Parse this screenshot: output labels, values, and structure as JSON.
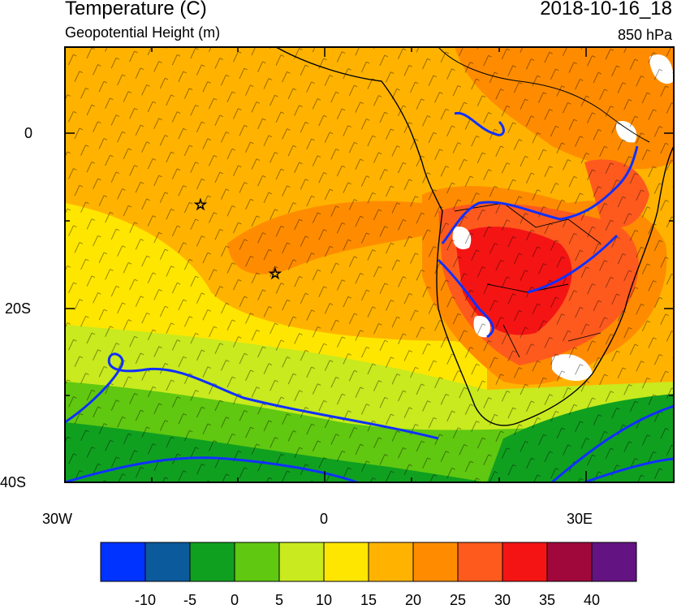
{
  "header": {
    "title": "Temperature (C)",
    "subtitle": "Geopotential Height (m)",
    "datetime": "2018-10-16_18",
    "level": "850 hPa"
  },
  "axes": {
    "lat_labels": [
      "0",
      "20S",
      "40S"
    ],
    "lon_labels": [
      "30W",
      "0",
      "30E"
    ]
  },
  "colorbar": {
    "colors": [
      "#0033ff",
      "#0b5a9c",
      "#10a020",
      "#60c810",
      "#c8ea1e",
      "#ffe600",
      "#ffb300",
      "#ff8c00",
      "#ff5a1e",
      "#f51414",
      "#a0083c",
      "#641482"
    ],
    "labels": [
      "-10",
      "-5",
      "0",
      "5",
      "10",
      "15",
      "20",
      "25",
      "30",
      "35",
      "40"
    ]
  },
  "legend_colors": {
    "contour": "#1030ff",
    "coast": "#000000",
    "missing": "#ffffff"
  }
}
